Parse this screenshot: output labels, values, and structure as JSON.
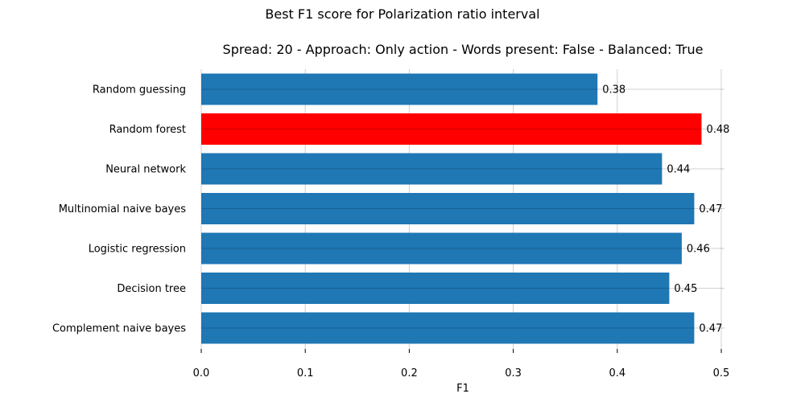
{
  "figure": {
    "suptitle": "Best F1 score for Polarization ratio interval"
  },
  "chart_data": {
    "type": "bar",
    "orientation": "horizontal",
    "title": "Spread: 20 - Approach: Only action - Words present: False - Balanced: True",
    "xlabel": "F1",
    "ylabel": "",
    "categories": [
      "Random guessing",
      "Random forest",
      "Neural network",
      "Multinomial naive bayes",
      "Logistic regression",
      "Decision tree",
      "Complement naive bayes"
    ],
    "values": [
      0.38,
      0.48,
      0.44,
      0.47,
      0.46,
      0.45,
      0.47
    ],
    "actual_values": [
      0.381,
      0.481,
      0.443,
      0.474,
      0.462,
      0.45,
      0.474
    ],
    "value_labels": [
      "0.38",
      "0.48",
      "0.44",
      "0.47",
      "0.46",
      "0.45",
      "0.47"
    ],
    "xlim": [
      0,
      0.5
    ],
    "xticks": [
      0.0,
      0.1,
      0.2,
      0.3,
      0.4,
      0.5
    ],
    "xtick_labels": [
      "0.0",
      "0.1",
      "0.2",
      "0.3",
      "0.4",
      "0.5"
    ],
    "grid": true,
    "colors": {
      "default_bar": "#1f77b4",
      "highlight_bar": "#ff0000",
      "grid": "#b0b0b0"
    },
    "highlight_index": 1
  }
}
